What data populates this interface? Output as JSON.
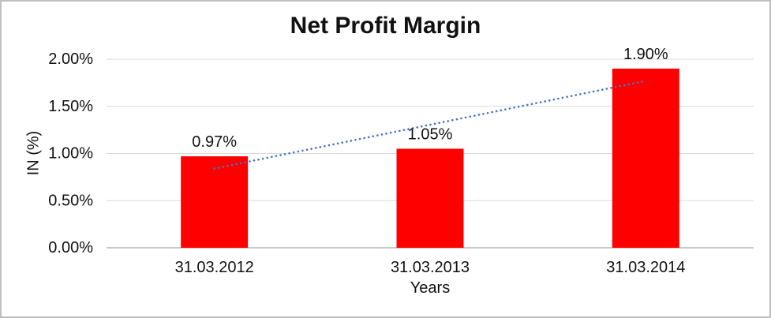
{
  "chart_data": {
    "type": "bar",
    "title": "Net Profit Margin",
    "xlabel": "Years",
    "ylabel": "IN (%)",
    "categories": [
      "31.03.2012",
      "31.03.2013",
      "31.03.2014"
    ],
    "values": [
      0.97,
      1.05,
      1.9
    ],
    "data_labels": [
      "0.97%",
      "1.05%",
      "1.90%"
    ],
    "ylim": [
      0,
      2.0
    ],
    "y_ticks": [
      {
        "value": 0.0,
        "label": "0.00%"
      },
      {
        "value": 0.5,
        "label": "0.50%"
      },
      {
        "value": 1.0,
        "label": "1.00%"
      },
      {
        "value": 1.5,
        "label": "1.50%"
      },
      {
        "value": 2.0,
        "label": "2.00%"
      }
    ],
    "grid": true,
    "legend": false,
    "bar_color": "#FF0000",
    "trendline": {
      "type": "linear",
      "style": "dotted",
      "color": "#4472C4",
      "start": {
        "category_index": 0,
        "value": 0.84
      },
      "end": {
        "category_index": 2,
        "value": 1.77
      }
    }
  },
  "colors": {
    "background": "#FFFFFF",
    "gridline": "#D9D9D9",
    "axis_line": "#C9C9C9",
    "text": "#111111",
    "frame_border": "#BFBFBF"
  }
}
